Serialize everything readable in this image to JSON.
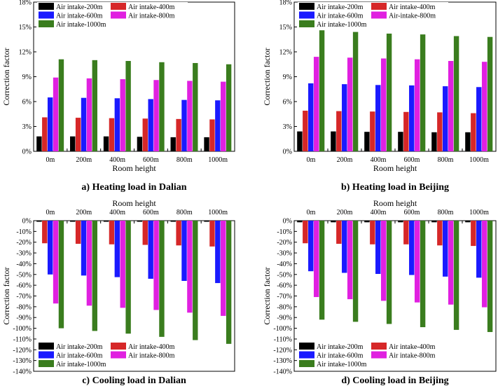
{
  "colors": {
    "s200": "#000000",
    "s400": "#d62728",
    "s600": "#1a1aff",
    "s800": "#e020e0",
    "s1000": "#3a7d1e"
  },
  "chart_data": [
    {
      "type": "bar",
      "caption": "a) Heating load in Dalian",
      "xlabel": "Room height",
      "ylabel": "Correction factor",
      "categories": [
        "0m",
        "200m",
        "400m",
        "600m",
        "800m",
        "1000m"
      ],
      "ylim": [
        0,
        18
      ],
      "yticks": [
        "0%",
        "3%",
        "6%",
        "9%",
        "12%",
        "15%",
        "18%"
      ],
      "series": [
        {
          "name": "Air intake-200m",
          "values": [
            1.8,
            1.8,
            1.8,
            1.75,
            1.7,
            1.7
          ]
        },
        {
          "name": "Air intake-400m",
          "values": [
            4.1,
            4.05,
            4.0,
            3.95,
            3.9,
            3.85
          ]
        },
        {
          "name": "Air intake-600m",
          "values": [
            6.5,
            6.45,
            6.4,
            6.3,
            6.2,
            6.15
          ]
        },
        {
          "name": "Air intake-800m",
          "values": [
            8.9,
            8.8,
            8.7,
            8.6,
            8.5,
            8.4
          ]
        },
        {
          "name": "Air intake-1000m",
          "values": [
            11.1,
            11.0,
            10.9,
            10.75,
            10.65,
            10.5
          ]
        }
      ]
    },
    {
      "type": "bar",
      "caption": "b) Heating load in Beijing",
      "xlabel": "Room height",
      "ylabel": "Correction factor",
      "categories": [
        "0m",
        "200m",
        "400m",
        "600m",
        "800m",
        "1000m"
      ],
      "ylim": [
        0,
        18
      ],
      "yticks": [
        "0%",
        "3%",
        "6%",
        "9%",
        "12%",
        "15%",
        "18%"
      ],
      "series": [
        {
          "name": "Air intake-200m",
          "values": [
            2.4,
            2.4,
            2.35,
            2.35,
            2.3,
            2.3
          ]
        },
        {
          "name": "Air intake-400m",
          "values": [
            4.9,
            4.85,
            4.8,
            4.75,
            4.7,
            4.6
          ]
        },
        {
          "name": "Air intake-600m",
          "values": [
            8.2,
            8.1,
            8.0,
            7.95,
            7.85,
            7.75
          ]
        },
        {
          "name": "Air-intake-800m",
          "values": [
            11.4,
            11.3,
            11.2,
            11.1,
            10.9,
            10.8
          ]
        },
        {
          "name": "Air intake-1000m",
          "values": [
            14.6,
            14.4,
            14.2,
            14.1,
            13.9,
            13.8
          ]
        }
      ]
    },
    {
      "type": "bar",
      "caption": "c) Cooling load in Dalian",
      "xlabel": "Room height",
      "ylabel": "Correction factor",
      "categories": [
        "0m",
        "200m",
        "400m",
        "600m",
        "800m",
        "1000m"
      ],
      "ylim": [
        -140,
        0
      ],
      "yticks": [
        "-140%",
        "-130%",
        "-120%",
        "-110%",
        "-100%",
        "-90%",
        "-80%",
        "-70%",
        "-60%",
        "-50%",
        "-40%",
        "-30%",
        "-20%",
        "-10%",
        "0%"
      ],
      "series": [
        {
          "name": "Air intake-200m",
          "values": [
            -1,
            -1,
            -1,
            -1,
            -1,
            -1
          ]
        },
        {
          "name": "Air intake-400m",
          "values": [
            -21,
            -21.5,
            -22,
            -22.5,
            -23,
            -24
          ]
        },
        {
          "name": "Air intake-600m",
          "values": [
            -50,
            -51,
            -52.5,
            -54,
            -56,
            -58
          ]
        },
        {
          "name": "Air intake-800m",
          "values": [
            -77,
            -79,
            -81,
            -83,
            -85.5,
            -88.5
          ]
        },
        {
          "name": "Air intake-1000m",
          "values": [
            -100,
            -102.5,
            -105,
            -108,
            -111,
            -114.5
          ]
        }
      ]
    },
    {
      "type": "bar",
      "caption": "d) Cooling load in Beijing",
      "xlabel": "Room height",
      "ylabel": "Correction factor",
      "categories": [
        "0m",
        "200m",
        "400m",
        "600m",
        "800m",
        "1000m"
      ],
      "ylim": [
        -140,
        0
      ],
      "yticks": [
        "-140%",
        "-130%",
        "-120%",
        "-110%",
        "-100%",
        "-90%",
        "-80%",
        "-70%",
        "-60%",
        "-50%",
        "-40%",
        "-30%",
        "-20%",
        "-10%",
        "0%"
      ],
      "series": [
        {
          "name": "Air intake-200m",
          "values": [
            -1.5,
            -1.5,
            -1.5,
            -1.5,
            -1.5,
            -1.5
          ]
        },
        {
          "name": "Air intake-400m",
          "values": [
            -21,
            -21.5,
            -22,
            -22,
            -23,
            -23.5
          ]
        },
        {
          "name": "Air intake-600m",
          "values": [
            -47,
            -48.5,
            -49.5,
            -50.5,
            -52,
            -53
          ]
        },
        {
          "name": "Air intake-800m",
          "values": [
            -71,
            -73,
            -74.5,
            -76,
            -78,
            -80.5
          ]
        },
        {
          "name": "Air intake-1000m",
          "values": [
            -92,
            -94,
            -96,
            -99,
            -101.5,
            -103.5
          ]
        }
      ]
    }
  ]
}
